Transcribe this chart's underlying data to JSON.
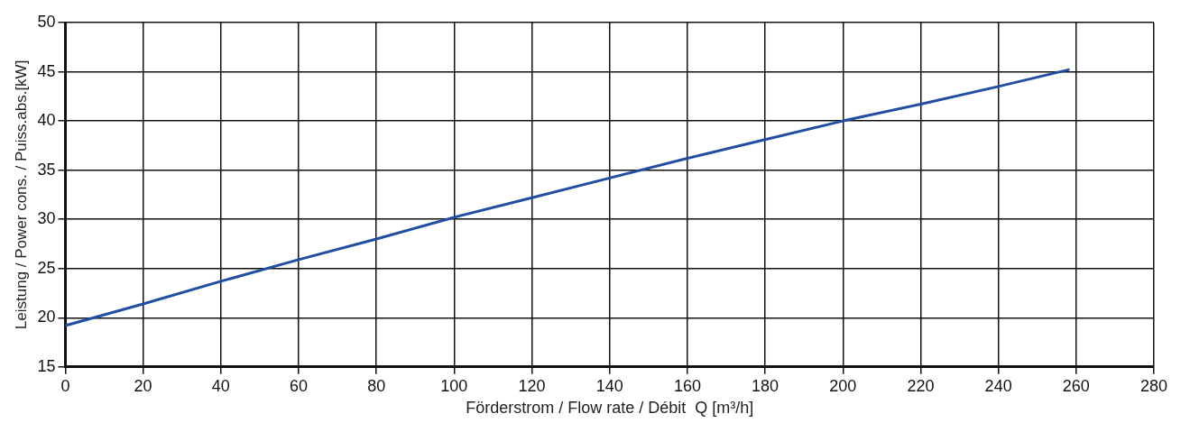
{
  "chart_data": {
    "type": "line",
    "xlabel": "Förderstrom / Flow rate / Débit  Q [m³/h]",
    "ylabel": "Leistung / Power cons. / Puiss.abs.[kW]",
    "series": [
      {
        "color": "#1f4ea3",
        "x": [
          0,
          20,
          40,
          60,
          80,
          100,
          120,
          140,
          160,
          180,
          200,
          220,
          240,
          258
        ],
        "values": [
          19.2,
          21.4,
          23.7,
          25.9,
          28.0,
          30.2,
          32.2,
          34.2,
          36.2,
          38.1,
          40.0,
          41.7,
          43.5,
          45.2
        ]
      }
    ],
    "xlim": [
      0,
      280
    ],
    "xticks": [
      0,
      20,
      40,
      60,
      80,
      100,
      120,
      140,
      160,
      180,
      200,
      220,
      240,
      260,
      280
    ],
    "ylim": [
      15,
      50
    ],
    "yticks": [
      15,
      20,
      25,
      30,
      35,
      40,
      45,
      50
    ],
    "grid": true,
    "legend": false,
    "marker": "none",
    "line_style": "solid"
  }
}
